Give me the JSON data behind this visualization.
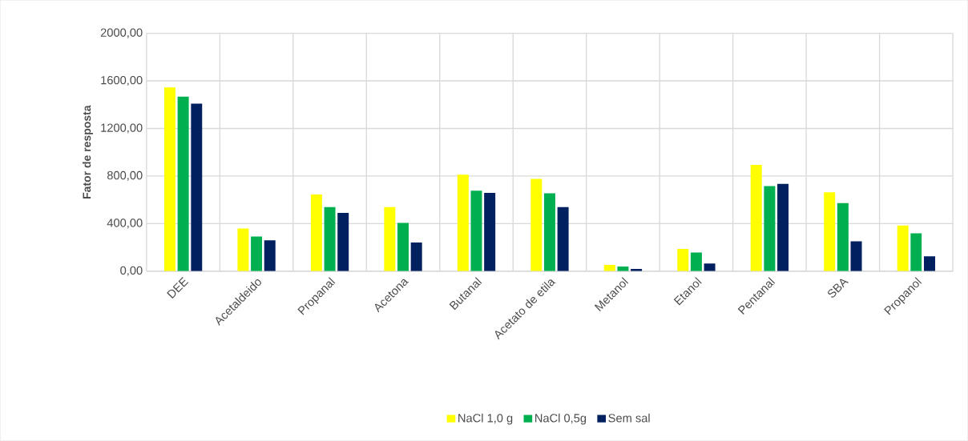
{
  "chart_data": {
    "type": "bar",
    "ylabel": "Fator de resposta",
    "categories": [
      "DEE",
      "Acetaldeido",
      "Propanal",
      "Acetona",
      "Butanal",
      "Acetato de etila",
      "Metanol",
      "Etanol",
      "Pentanal",
      "SBA",
      "Propanol"
    ],
    "series": [
      {
        "name": "NaCl 1,0 g",
        "color": "#ffff00",
        "values": [
          1544,
          358,
          645,
          538,
          811,
          775,
          52,
          187,
          893,
          663,
          383
        ]
      },
      {
        "name": "NaCl 0,5g",
        "color": "#00b050",
        "values": [
          1469,
          292,
          538,
          405,
          677,
          654,
          39,
          157,
          715,
          572,
          319
        ]
      },
      {
        "name": "Sem sal",
        "color": "#002060",
        "values": [
          1408,
          260,
          490,
          241,
          658,
          538,
          18,
          64,
          733,
          251,
          125
        ]
      }
    ],
    "ylim": [
      0,
      2000
    ],
    "yticks": [
      {
        "value": 0,
        "label": "0,00"
      },
      {
        "value": 400,
        "label": "400,00"
      },
      {
        "value": 800,
        "label": "800,00"
      },
      {
        "value": 1200,
        "label": "1200,00"
      },
      {
        "value": 1600,
        "label": "1600,00"
      },
      {
        "value": 2000,
        "label": "2000,00"
      }
    ],
    "grid": true,
    "legend": "bottom"
  }
}
